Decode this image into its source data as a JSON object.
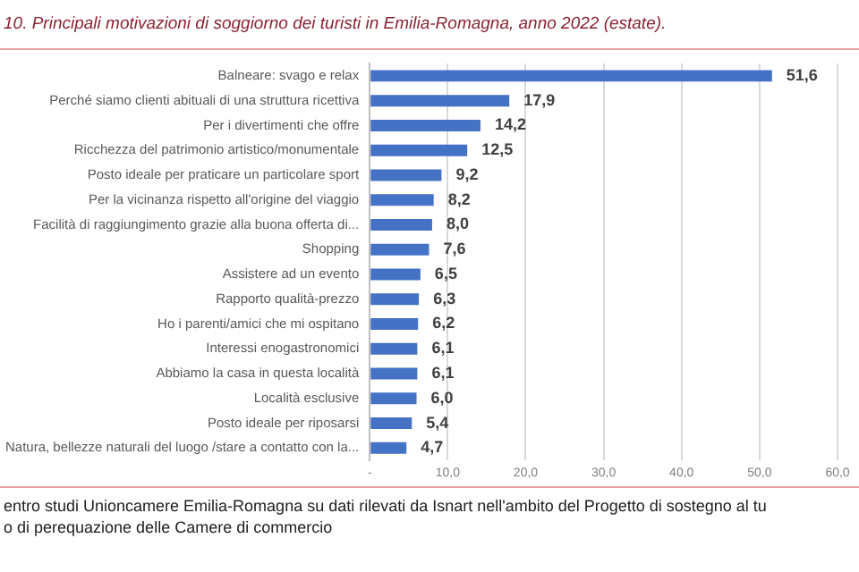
{
  "chart_data": {
    "type": "bar",
    "orientation": "horizontal",
    "title": "10.  Principali motivazioni di soggiorno dei turisti in Emilia-Romagna, anno 2022 (estate).",
    "categories": [
      "Balneare: svago e relax",
      "Perché siamo clienti abituali di una struttura ricettiva",
      "Per i divertimenti che offre",
      "Ricchezza del patrimonio artistico/monumentale",
      "Posto ideale per praticare un particolare sport",
      "Per la vicinanza rispetto all'origine del viaggio",
      "Facilità di raggiungimento grazie alla buona offerta di...",
      "Shopping",
      "Assistere ad un evento",
      "Rapporto qualità-prezzo",
      "Ho i parenti/amici che mi ospitano",
      "Interessi enogastronomici",
      "Abbiamo la casa in questa località",
      "Località esclusive",
      "Posto ideale per riposarsi",
      "Natura, bellezze naturali del luogo /stare a contatto con la..."
    ],
    "values": [
      51.6,
      17.9,
      14.2,
      12.5,
      9.2,
      8.2,
      8.0,
      7.6,
      6.5,
      6.3,
      6.2,
      6.1,
      6.1,
      6.0,
      5.4,
      4.7
    ],
    "value_labels": [
      "51,6",
      "17,9",
      "14,2",
      "12,5",
      "9,2",
      "8,2",
      "8,0",
      "7,6",
      "6,5",
      "6,3",
      "6,2",
      "6,1",
      "6,1",
      "6,0",
      "5,4",
      "4,7"
    ],
    "color": "#4472c4",
    "xlim": [
      0,
      60
    ],
    "xticks": [
      {
        "value": 0,
        "label": "-"
      },
      {
        "value": 10,
        "label": "10,0"
      },
      {
        "value": 20,
        "label": "20,0"
      },
      {
        "value": 30,
        "label": "30,0"
      },
      {
        "value": 40,
        "label": "40,0"
      },
      {
        "value": 50,
        "label": "50,0"
      },
      {
        "value": 60,
        "label": "60,0"
      }
    ],
    "grid": "x",
    "annotations": [
      "entro studi Unioncamere Emilia-Romagna su dati rilevati da Isnart nell'ambito del Progetto di sostegno al tu",
      "o di perequazione delle Camere di commercio"
    ]
  }
}
